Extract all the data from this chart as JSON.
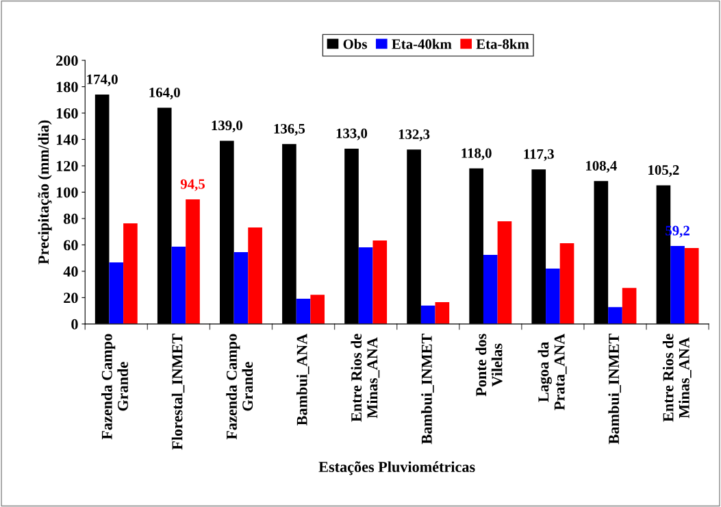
{
  "chart_data": {
    "type": "bar",
    "xlabel": "Estações Pluviométricas",
    "ylabel": "Precipitação (mm/dia)",
    "categories": [
      "Fazenda Campo\nGrande",
      "Florestal_INMET",
      "Fazenda Campo\nGrande",
      "Bambui_ANA",
      "Entre Rios de\nMinas_ANA",
      "Bambui_INMET",
      "Ponte dos\nVilelas",
      "Lagoa da\nPrata_ANA",
      "Bambui_INMET",
      "Entre Rios de\nMinas_ANA"
    ],
    "series": [
      {
        "name": "Obs",
        "color": "#000000",
        "values": [
          174.0,
          164.0,
          139.0,
          136.5,
          133.0,
          132.3,
          118.0,
          117.3,
          108.4,
          105.2
        ],
        "value_labels": [
          "174,0",
          "164,0",
          "139,0",
          "136,5",
          "133,0",
          "132,3",
          "118,0",
          "117,3",
          "108,4",
          "105,2"
        ]
      },
      {
        "name": "Eta-40km",
        "color": "#0000ff",
        "values": [
          46.7,
          58.6,
          54.5,
          19.1,
          58.1,
          13.9,
          52.4,
          42.0,
          12.8,
          59.2
        ],
        "value_labels": [
          null,
          null,
          null,
          null,
          null,
          null,
          null,
          null,
          null,
          "59,2"
        ]
      },
      {
        "name": "Eta-8km",
        "color": "#ff0000",
        "values": [
          76.3,
          94.5,
          73.2,
          22.2,
          63.3,
          16.5,
          77.9,
          61.2,
          27.4,
          57.6
        ],
        "value_labels": [
          null,
          "94,5",
          null,
          null,
          null,
          null,
          null,
          null,
          null,
          null
        ]
      }
    ],
    "ylim": [
      0,
      200
    ],
    "yticks": [
      0,
      20,
      40,
      60,
      80,
      100,
      120,
      140,
      160,
      180,
      200
    ],
    "grid": false,
    "legend": "top"
  }
}
